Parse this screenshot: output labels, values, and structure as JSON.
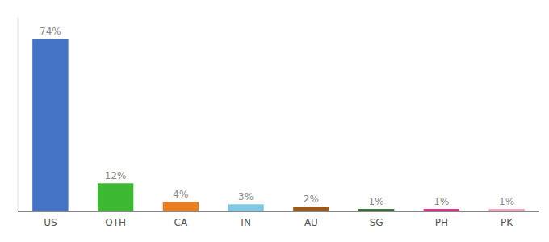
{
  "chart_data": {
    "type": "bar",
    "categories": [
      "US",
      "OTH",
      "CA",
      "IN",
      "AU",
      "SG",
      "PH",
      "PK"
    ],
    "values": [
      74,
      12,
      4,
      3,
      2,
      1,
      1,
      1
    ],
    "value_labels": [
      "74%",
      "12%",
      "4%",
      "3%",
      "2%",
      "1%",
      "1%",
      "1%"
    ],
    "colors": [
      "#4472c4",
      "#3cb832",
      "#e87e20",
      "#7ec8e3",
      "#9b5a1a",
      "#2e6b2e",
      "#e91e8c",
      "#f4a0b8"
    ],
    "ylim": [
      0,
      83
    ],
    "data_labels": true,
    "tick_labels": "x"
  }
}
